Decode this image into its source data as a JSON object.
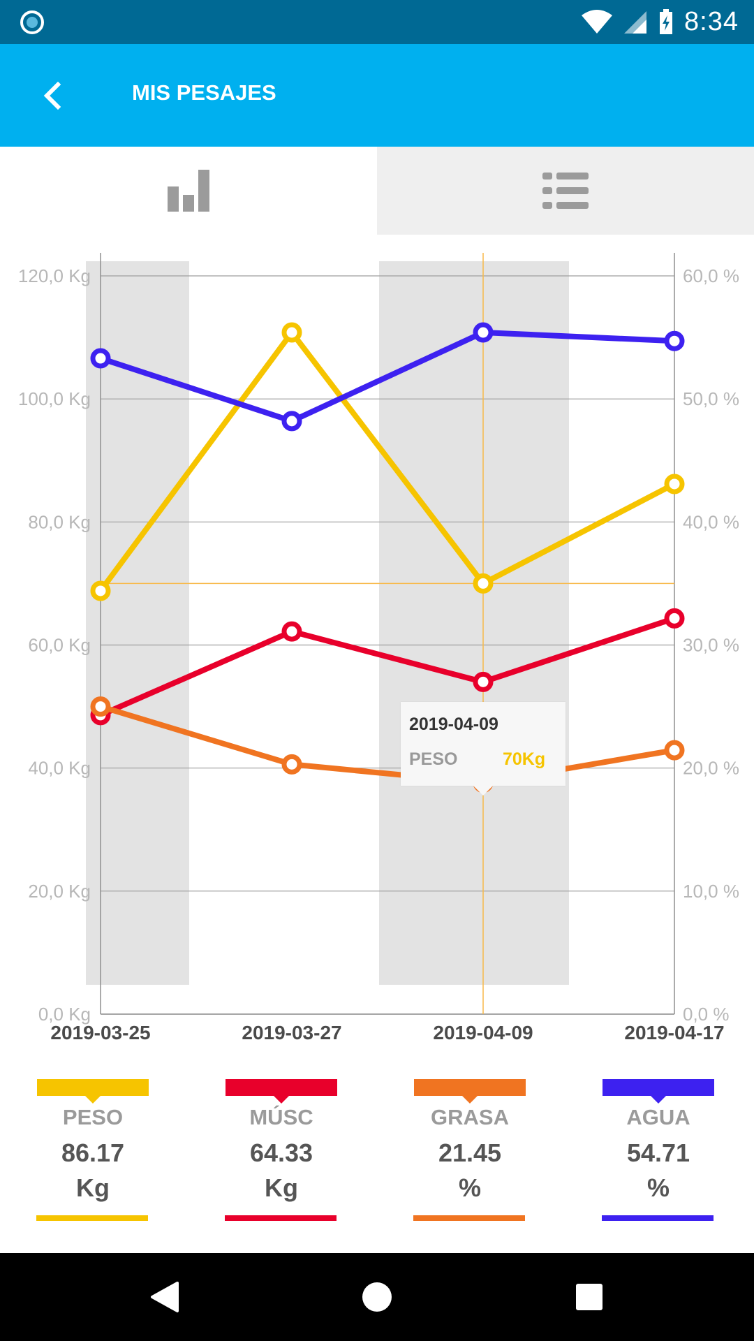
{
  "status_bar": {
    "time": "8:34",
    "icons": [
      "record-icon",
      "wifi-icon",
      "signal-icon",
      "battery-charging-icon"
    ]
  },
  "app_bar": {
    "title": "MIS PESAJES",
    "back_icon": "chevron-left-icon"
  },
  "tabs": [
    {
      "name": "chart",
      "icon": "bar-chart-icon",
      "selected": true
    },
    {
      "name": "list",
      "icon": "list-icon",
      "selected": false
    }
  ],
  "chart_data": {
    "type": "line",
    "x": [
      "2019-03-25",
      "2019-03-27",
      "2019-04-09",
      "2019-04-17"
    ],
    "y_left": {
      "ticks": [
        "0,0 Kg",
        "20,0 Kg",
        "40,0 Kg",
        "60,0 Kg",
        "80,0 Kg",
        "100,0 Kg",
        "120,0 Kg"
      ],
      "ylim": [
        0,
        120
      ],
      "unit": "Kg"
    },
    "y_right": {
      "ticks": [
        "0,0 %",
        "10,0 %",
        "20,0 %",
        "30,0 %",
        "40,0 %",
        "50,0 %",
        "60,0 %"
      ],
      "ylim": [
        0,
        60
      ],
      "unit": "%"
    },
    "series": [
      {
        "name": "PESO",
        "axis": "left",
        "color": "#f6c400",
        "values": [
          68.8,
          110.8,
          70.0,
          86.17
        ]
      },
      {
        "name": "MÚSC",
        "axis": "left",
        "color": "#e8002b",
        "values": [
          48.6,
          62.2,
          54.0,
          64.33
        ]
      },
      {
        "name": "GRASA",
        "axis": "right",
        "color": "#f07421",
        "values": [
          25.0,
          20.3,
          18.8,
          21.45
        ]
      },
      {
        "name": "AGUA",
        "axis": "right",
        "color": "#3d21f0",
        "values": [
          53.3,
          48.2,
          55.4,
          54.71
        ]
      }
    ],
    "highlighted_x": "2019-04-09",
    "highlight_color": "#f8b94a",
    "shaded_bands": [
      "2019-03-25",
      "2019-04-09"
    ],
    "grid": true
  },
  "tooltip": {
    "date": "2019-04-09",
    "label": "PESO",
    "value": "70Kg"
  },
  "legend": [
    {
      "name": "PESO",
      "value": "86.17",
      "unit": "Kg",
      "color": "#f6c400"
    },
    {
      "name": "MÚSC",
      "value": "64.33",
      "unit": "Kg",
      "color": "#e8002b"
    },
    {
      "name": "GRASA",
      "value": "21.45",
      "unit": "%",
      "color": "#f07421"
    },
    {
      "name": "AGUA",
      "value": "54.71",
      "unit": "%",
      "color": "#3d21f0"
    }
  ],
  "nav_bar": {
    "buttons": [
      "back-triangle-icon",
      "home-circle-icon",
      "recents-square-icon"
    ]
  }
}
